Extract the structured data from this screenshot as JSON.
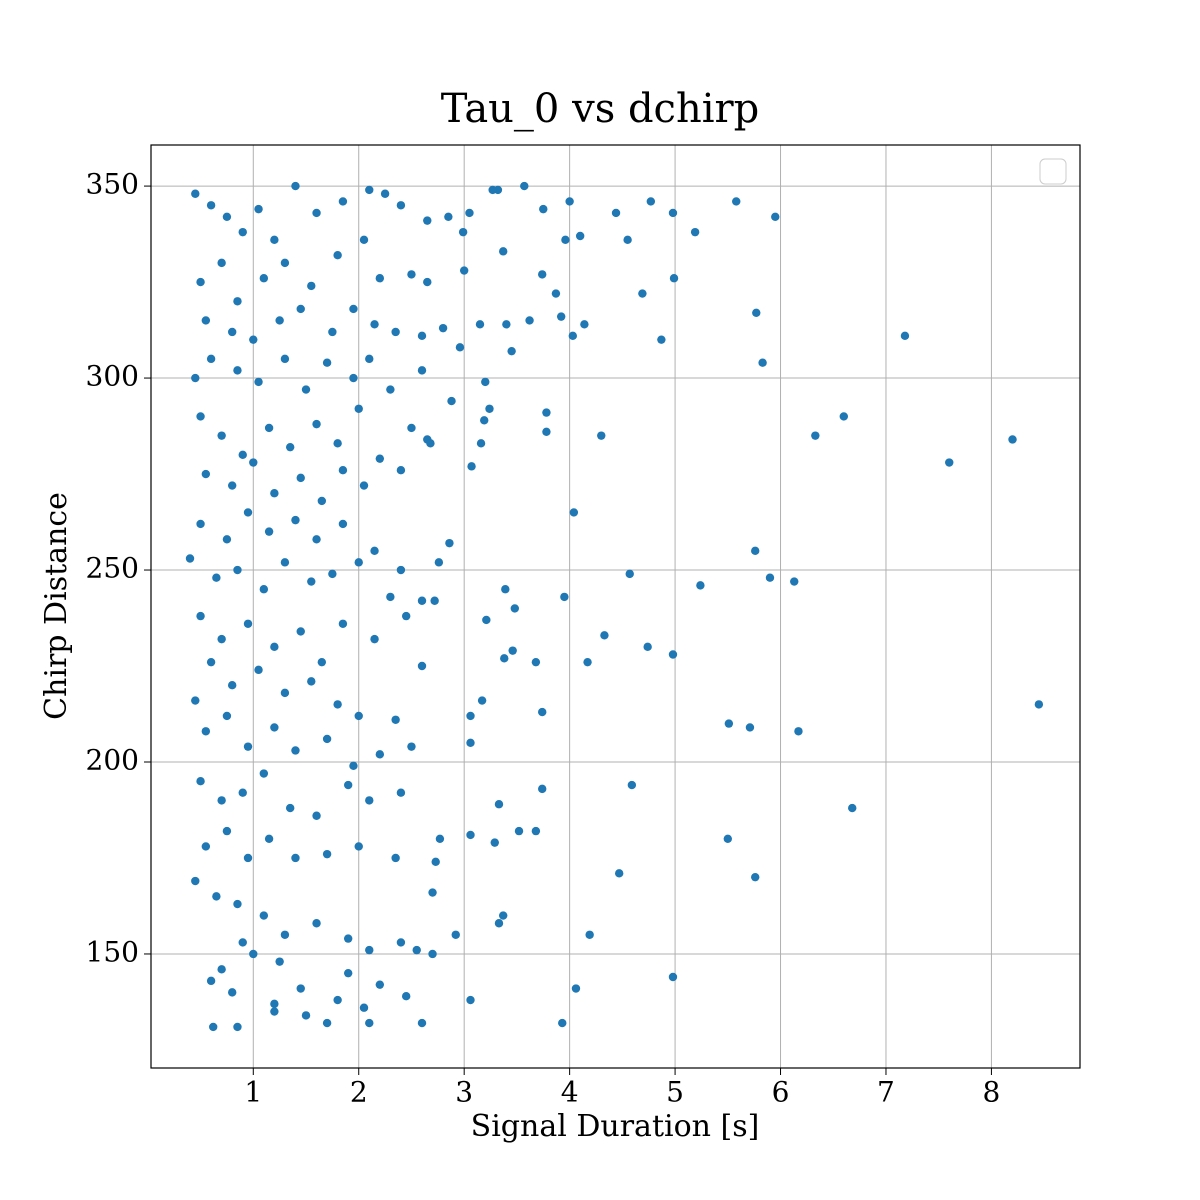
{
  "chart_data": {
    "type": "scatter",
    "title": "Tau_0 vs dchirp",
    "xlabel": "Signal Duration [s]",
    "ylabel": "Chirp Distance",
    "color": "#1f77b4",
    "grid": true,
    "xlim": [
      0.03,
      8.84
    ],
    "ylim": [
      120.3,
      360.7
    ],
    "xticks": [
      1,
      2,
      3,
      4,
      5,
      6,
      7,
      8
    ],
    "yticks": [
      150,
      200,
      250,
      300,
      350
    ],
    "x": [
      0.45,
      0.6,
      0.75,
      0.9,
      1.05,
      1.2,
      1.4,
      1.6,
      1.85,
      2.1,
      2.25,
      2.4,
      2.65,
      0.5,
      0.7,
      0.85,
      1.1,
      1.3,
      1.55,
      1.8,
      2.05,
      2.2,
      2.5,
      2.65,
      0.55,
      0.8,
      1.0,
      1.25,
      1.45,
      1.75,
      1.95,
      2.15,
      2.35,
      2.6,
      0.45,
      0.6,
      0.85,
      1.05,
      1.3,
      1.5,
      1.7,
      1.95,
      2.1,
      2.3,
      2.6,
      0.5,
      0.7,
      0.9,
      1.15,
      1.35,
      1.6,
      1.8,
      2.0,
      2.2,
      2.5,
      2.65,
      0.55,
      0.8,
      1.0,
      1.2,
      1.45,
      1.65,
      1.85,
      2.05,
      2.4,
      0.5,
      0.75,
      0.95,
      1.15,
      1.4,
      1.6,
      1.85,
      2.15,
      2.4,
      0.4,
      0.65,
      0.85,
      1.1,
      1.3,
      1.55,
      1.75,
      2.0,
      2.3,
      2.6,
      0.5,
      0.7,
      0.95,
      1.2,
      1.45,
      1.65,
      1.85,
      2.15,
      2.45,
      0.6,
      0.8,
      1.05,
      1.3,
      1.55,
      1.8,
      2.0,
      2.35,
      2.6,
      0.45,
      0.55,
      0.75,
      0.95,
      1.2,
      1.4,
      1.7,
      1.95,
      2.2,
      2.5,
      0.5,
      0.7,
      0.9,
      1.1,
      1.35,
      1.6,
      1.9,
      2.1,
      2.4,
      0.55,
      0.75,
      0.95,
      1.15,
      1.4,
      1.7,
      2.0,
      2.35,
      2.7,
      0.45,
      0.65,
      0.85,
      1.1,
      1.3,
      1.6,
      1.9,
      2.1,
      2.4,
      2.55,
      0.6,
      0.8,
      1.0,
      1.2,
      1.45,
      1.8,
      2.05,
      2.2,
      2.45,
      0.62,
      0.85,
      1.2,
      1.5,
      1.7,
      2.1,
      2.6,
      0.7,
      1.25,
      1.9,
      0.9,
      8.45,
      8.2,
      7.6,
      7.18,
      6.68,
      6.6,
      6.33,
      6.17,
      6.13,
      5.95,
      5.9,
      5.83,
      5.77,
      5.76,
      5.76,
      5.71,
      5.58,
      5.51,
      5.5,
      5.24,
      5.19,
      4.98,
      4.98,
      4.98,
      4.99,
      4.87,
      4.77,
      4.74,
      4.69,
      4.59,
      4.57,
      4.55,
      4.47,
      4.44,
      4.3,
      4.33,
      4.19,
      4.17,
      4.14,
      4.1,
      4.06,
      4.03,
      4.04,
      4.0,
      3.96,
      3.95,
      3.93,
      3.92,
      3.87,
      3.78,
      3.78,
      3.75,
      3.74,
      3.74,
      3.74,
      3.68,
      3.68,
      3.62,
      3.57,
      3.52,
      3.48,
      3.45,
      3.46,
      3.4,
      3.39,
      3.38,
      3.37,
      3.37,
      3.33,
      3.33,
      3.32,
      3.29,
      3.27,
      3.24,
      3.21,
      3.2,
      3.19,
      3.17,
      3.16,
      3.15,
      3.07,
      3.06,
      3.06,
      3.06,
      3.06,
      3.05,
      3.0,
      2.99,
      2.96,
      2.92,
      2.88,
      2.86,
      2.85,
      2.8,
      2.77,
      2.76,
      2.73,
      2.7,
      2.68,
      2.72
    ],
    "values": [
      348,
      345,
      342,
      338,
      344,
      336,
      350,
      343,
      346,
      349,
      348,
      345,
      341,
      325,
      330,
      320,
      326,
      330,
      324,
      332,
      336,
      326,
      327,
      325,
      315,
      312,
      310,
      315,
      318,
      312,
      318,
      314,
      312,
      311,
      300,
      305,
      302,
      299,
      305,
      297,
      304,
      300,
      305,
      297,
      302,
      290,
      285,
      280,
      287,
      282,
      288,
      283,
      292,
      279,
      287,
      284,
      275,
      272,
      278,
      270,
      274,
      268,
      276,
      272,
      276,
      262,
      258,
      265,
      260,
      263,
      258,
      262,
      255,
      250,
      253,
      248,
      250,
      245,
      252,
      247,
      249,
      252,
      243,
      242,
      238,
      232,
      236,
      230,
      234,
      226,
      236,
      232,
      238,
      226,
      220,
      224,
      218,
      221,
      215,
      212,
      211,
      225,
      216,
      208,
      212,
      204,
      209,
      203,
      206,
      199,
      202,
      204,
      195,
      190,
      192,
      197,
      188,
      186,
      194,
      190,
      192,
      178,
      182,
      175,
      180,
      175,
      176,
      178,
      175,
      166,
      169,
      165,
      163,
      160,
      155,
      158,
      154,
      151,
      153,
      151,
      143,
      140,
      150,
      137,
      141,
      138,
      136,
      142,
      139,
      131,
      131,
      135,
      134,
      132,
      132,
      132,
      146,
      148,
      145,
      153,
      215,
      284,
      278,
      311,
      188,
      290,
      285,
      208,
      247,
      342,
      248,
      304,
      317,
      255,
      170,
      209,
      346,
      210,
      180,
      246,
      338,
      228,
      144,
      343,
      326,
      310,
      346,
      230,
      322,
      194,
      249,
      336,
      171,
      343,
      285,
      233,
      155,
      226,
      314,
      337,
      141,
      311,
      265,
      346,
      336,
      243,
      132,
      316,
      322,
      291,
      286,
      344,
      213,
      193,
      327,
      182,
      226,
      315,
      350,
      182,
      240,
      307,
      229,
      314,
      245,
      227,
      160,
      333,
      189,
      158,
      349,
      179,
      349,
      292,
      237,
      299,
      289,
      216,
      283,
      314,
      277,
      138,
      181,
      212,
      205,
      343,
      328,
      338,
      308,
      155,
      294,
      257,
      342,
      313,
      180,
      252,
      174,
      150,
      283,
      242
    ]
  }
}
